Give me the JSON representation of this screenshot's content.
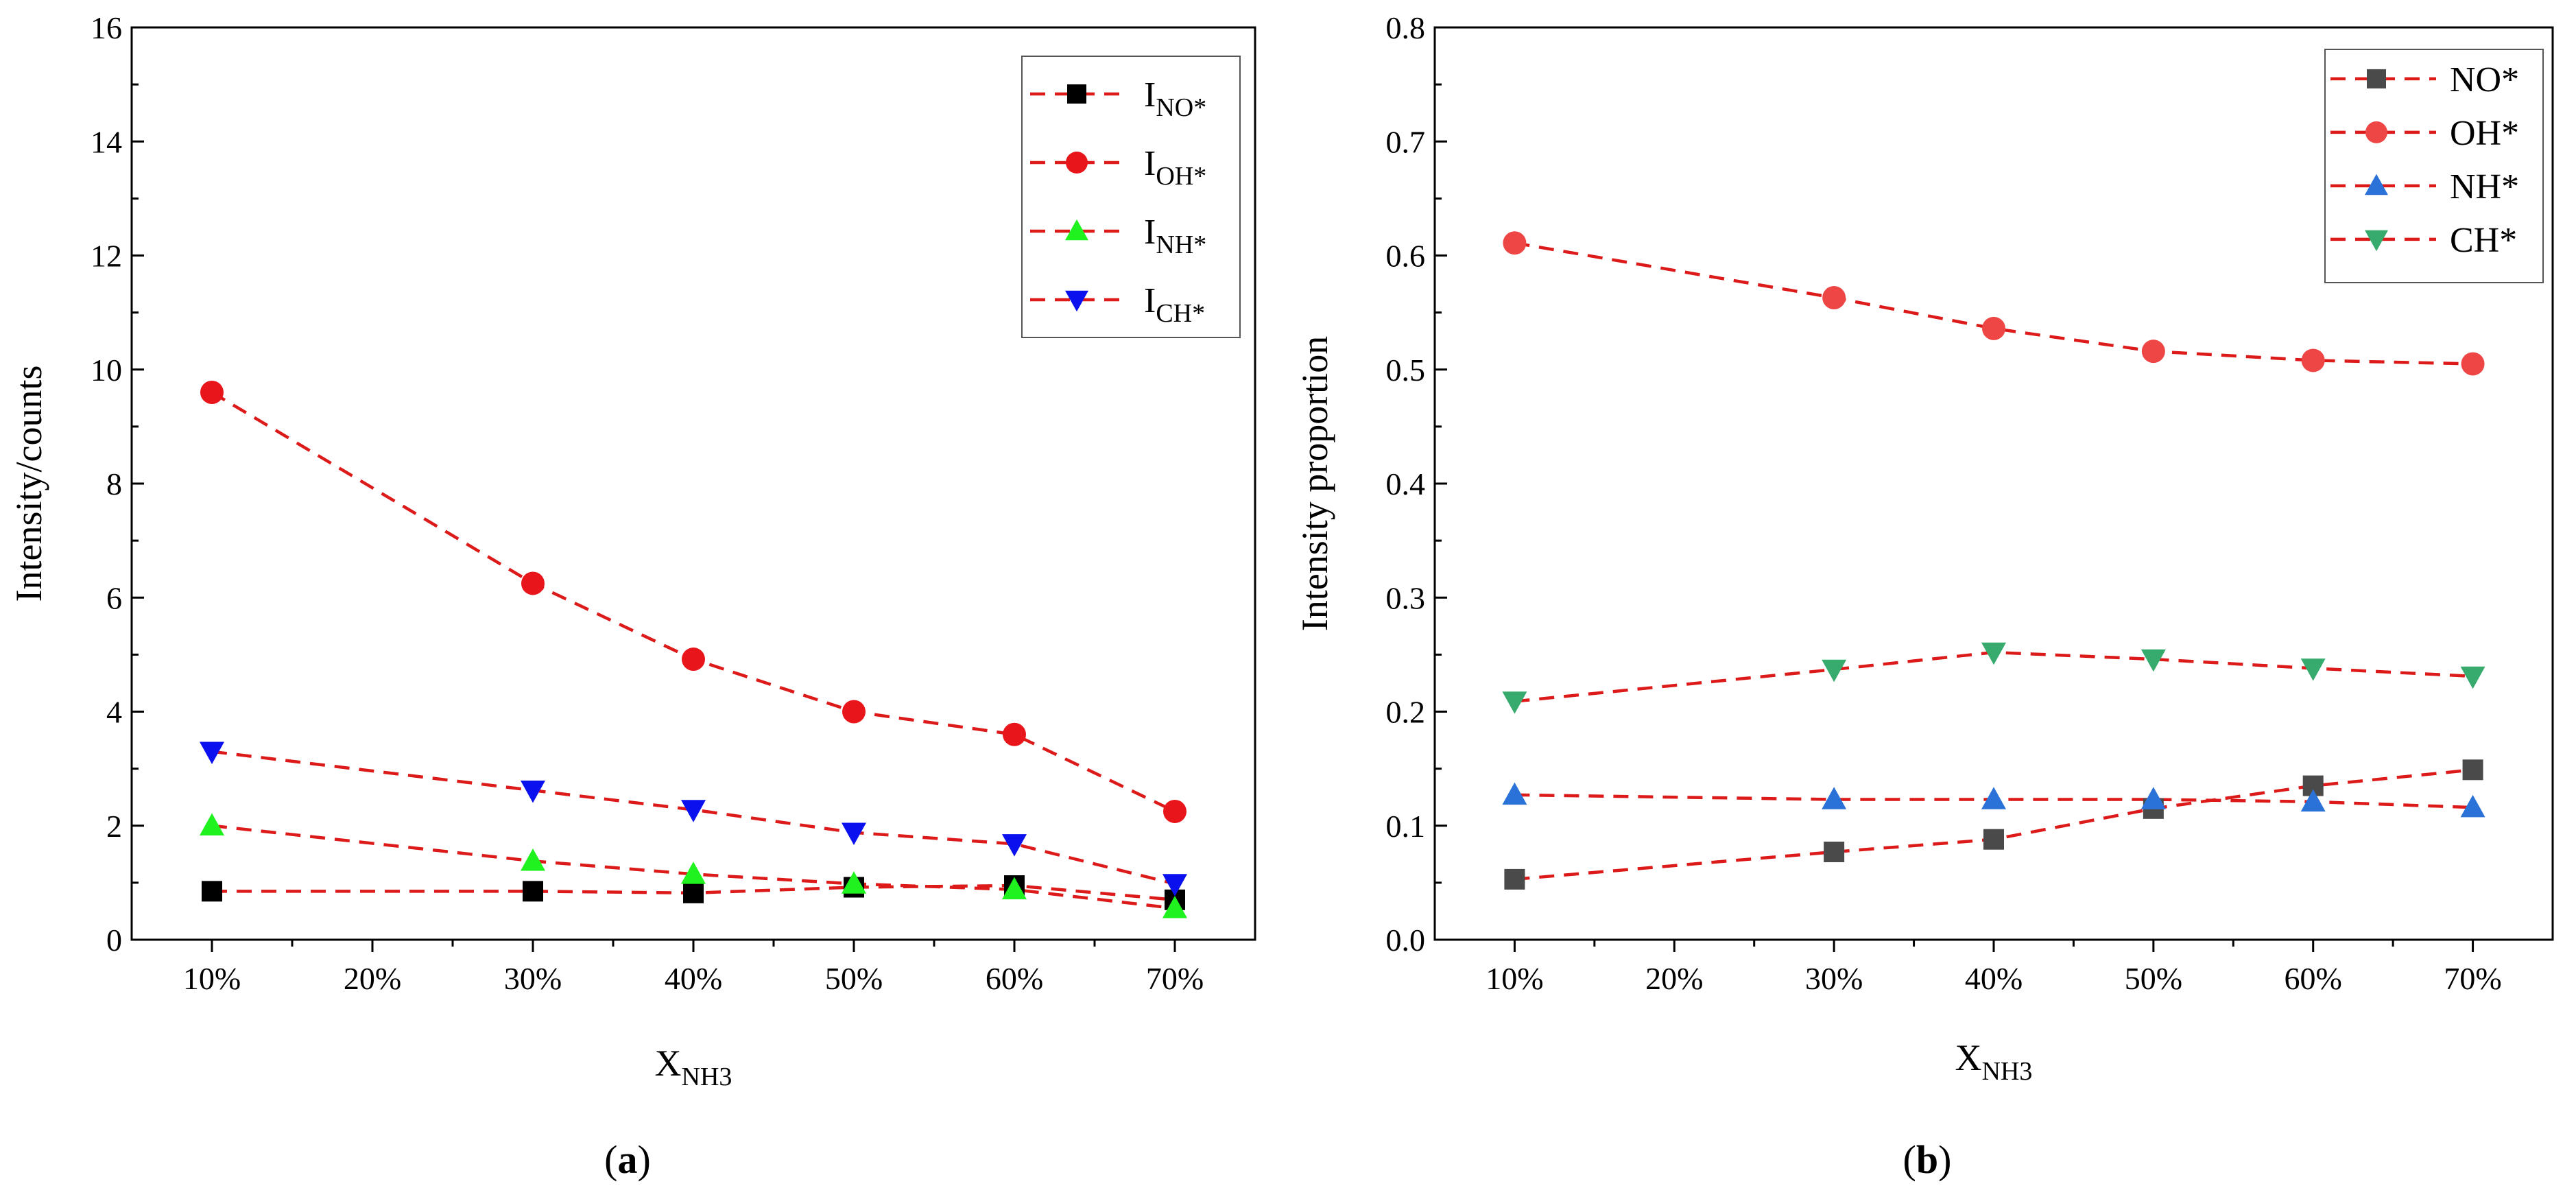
{
  "chart_data": [
    {
      "type": "line",
      "panel_label": "(a)",
      "title": "",
      "xlabel": {
        "base": "X",
        "sub": "NH3"
      },
      "ylabel": "Intensity/counts",
      "xlim": [
        5,
        75
      ],
      "ylim": [
        0,
        16
      ],
      "x_ticks": [
        10,
        20,
        30,
        40,
        50,
        60,
        70
      ],
      "x_tick_labels": [
        "10%",
        "20%",
        "30%",
        "40%",
        "50%",
        "60%",
        "70%"
      ],
      "y_ticks": [
        0,
        2,
        4,
        6,
        8,
        10,
        12,
        14,
        16
      ],
      "y_tick_labels": [
        "0",
        "2",
        "4",
        "6",
        "8",
        "10",
        "12",
        "14",
        "16"
      ],
      "legend_position": "top-right",
      "series": [
        {
          "name": "I_NO*",
          "label_base": "I",
          "label_sub": "NO*",
          "marker": "square",
          "color": "#000000",
          "x": [
            10,
            30,
            40,
            50,
            60,
            70
          ],
          "values": [
            0.85,
            0.85,
            0.82,
            0.92,
            0.95,
            0.7
          ]
        },
        {
          "name": "I_OH*",
          "label_base": "I",
          "label_sub": "OH*",
          "marker": "circle",
          "color": "#e8151b",
          "x": [
            10,
            30,
            40,
            50,
            60,
            70
          ],
          "values": [
            9.6,
            6.25,
            4.92,
            4.0,
            3.6,
            2.25
          ]
        },
        {
          "name": "I_NH*",
          "label_base": "I",
          "label_sub": "NH*",
          "marker": "triangle-up",
          "color": "#1ff21f",
          "x": [
            10,
            30,
            40,
            50,
            60,
            70
          ],
          "values": [
            2.0,
            1.38,
            1.15,
            0.98,
            0.88,
            0.55
          ]
        },
        {
          "name": "I_CH*",
          "label_base": "I",
          "label_sub": "CH*",
          "marker": "triangle-down",
          "color": "#0a10ee",
          "x": [
            10,
            30,
            40,
            50,
            60,
            70
          ],
          "values": [
            3.3,
            2.62,
            2.28,
            1.88,
            1.68,
            0.98
          ]
        }
      ]
    },
    {
      "type": "line",
      "panel_label": "(b)",
      "title": "",
      "xlabel": {
        "base": "X",
        "sub": "NH3"
      },
      "ylabel": "Intensity proportion",
      "xlim": [
        5,
        75
      ],
      "ylim": [
        0,
        0.8
      ],
      "x_ticks": [
        10,
        20,
        30,
        40,
        50,
        60,
        70
      ],
      "x_tick_labels": [
        "10%",
        "20%",
        "30%",
        "40%",
        "50%",
        "60%",
        "70%"
      ],
      "y_ticks": [
        0,
        0.1,
        0.2,
        0.3,
        0.4,
        0.5,
        0.6,
        0.7,
        0.8
      ],
      "y_tick_labels": [
        "0.0",
        "0.1",
        "0.2",
        "0.3",
        "0.4",
        "0.5",
        "0.6",
        "0.7",
        "0.8"
      ],
      "legend_position": "top-right",
      "series": [
        {
          "name": "NO*",
          "label_base": "NO*",
          "label_sub": "",
          "marker": "square",
          "color": "#4a4a4a",
          "x": [
            10,
            30,
            40,
            50,
            60,
            70
          ],
          "values": [
            0.053,
            0.077,
            0.088,
            0.115,
            0.135,
            0.149
          ]
        },
        {
          "name": "OH*",
          "label_base": "OH*",
          "label_sub": "",
          "marker": "circle",
          "color": "#ee4545",
          "x": [
            10,
            30,
            40,
            50,
            60,
            70
          ],
          "values": [
            0.611,
            0.563,
            0.536,
            0.516,
            0.508,
            0.505
          ]
        },
        {
          "name": "NH*",
          "label_base": "NH*",
          "label_sub": "",
          "marker": "triangle-up",
          "color": "#2a72d8",
          "x": [
            10,
            30,
            40,
            50,
            60,
            70
          ],
          "values": [
            0.127,
            0.123,
            0.123,
            0.123,
            0.121,
            0.116
          ]
        },
        {
          "name": "CH*",
          "label_base": "CH*",
          "label_sub": "",
          "marker": "triangle-down",
          "color": "#37ab6d",
          "x": [
            10,
            30,
            40,
            50,
            60,
            70
          ],
          "values": [
            0.209,
            0.237,
            0.252,
            0.246,
            0.238,
            0.231
          ]
        }
      ]
    }
  ]
}
